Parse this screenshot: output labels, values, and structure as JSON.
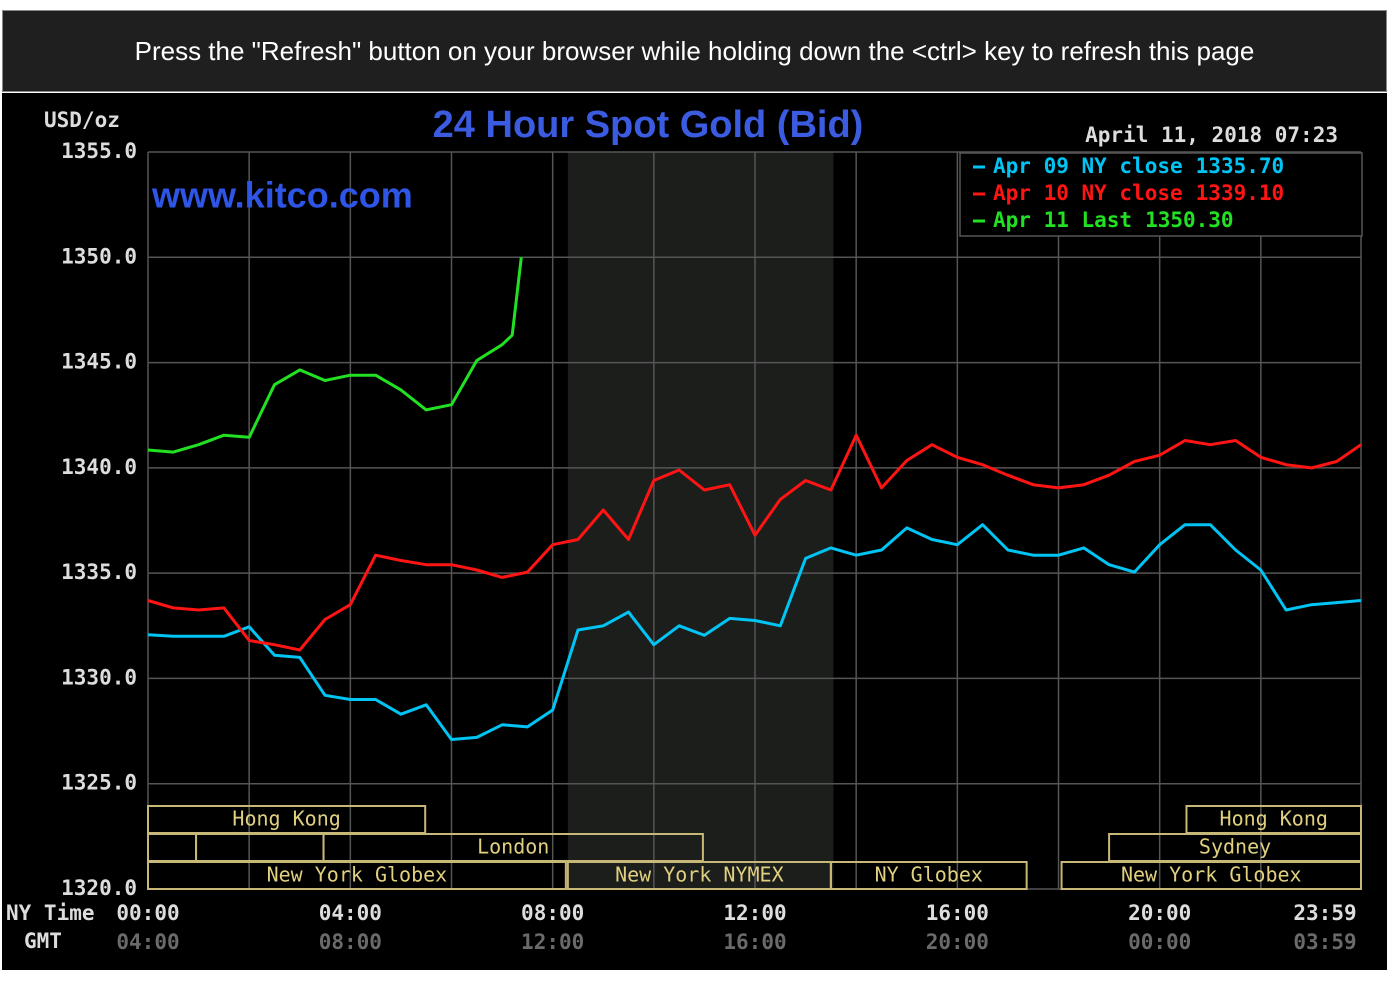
{
  "banner": {
    "text": "Press the \"Refresh\" button on your browser while holding down the <ctrl> key to refresh this page"
  },
  "chart_data": {
    "type": "line",
    "title": "24 Hour Spot Gold (Bid)",
    "y_label": "USD/oz",
    "timestamp": "April 11, 2018 07:23",
    "watermark": "www.kitco.com",
    "x_label": "NY Time",
    "x2_label": "GMT",
    "x": [
      0,
      0.5,
      1,
      1.5,
      2,
      2.5,
      3,
      3.5,
      4,
      4.5,
      5,
      5.5,
      6,
      6.5,
      7,
      7.5,
      8,
      8.5,
      9,
      9.5,
      10,
      10.5,
      11,
      11.5,
      12,
      12.5,
      13,
      13.5,
      14,
      14.5,
      15,
      15.5,
      16,
      16.5,
      17,
      17.5,
      18,
      18.5,
      19,
      19.5,
      20,
      20.5,
      21,
      21.5,
      22,
      22.5,
      23,
      23.5,
      23.98
    ],
    "xlim": [
      0,
      23.98
    ],
    "xticks": [
      {
        "value": 0,
        "label": "00:00"
      },
      {
        "value": 4,
        "label": "04:00"
      },
      {
        "value": 8,
        "label": "08:00"
      },
      {
        "value": 12,
        "label": "12:00"
      },
      {
        "value": 16,
        "label": "16:00"
      },
      {
        "value": 20,
        "label": "20:00"
      },
      {
        "value": 23.98,
        "label": "23:59"
      }
    ],
    "x2ticks": [
      {
        "value": 0,
        "label": "04:00"
      },
      {
        "value": 4,
        "label": "08:00"
      },
      {
        "value": 8,
        "label": "12:00"
      },
      {
        "value": 12,
        "label": "16:00"
      },
      {
        "value": 16,
        "label": "20:00"
      },
      {
        "value": 20,
        "label": "00:00"
      },
      {
        "value": 23.98,
        "label": "03:59"
      }
    ],
    "xgrid": [
      0,
      2,
      4,
      6,
      8,
      10,
      12,
      14,
      16,
      18,
      20,
      22,
      23.98
    ],
    "ylim": [
      1320,
      1355
    ],
    "yticks": [
      {
        "value": 1320,
        "label": "1320.0"
      },
      {
        "value": 1325,
        "label": "1325.0"
      },
      {
        "value": 1330,
        "label": "1330.0"
      },
      {
        "value": 1335,
        "label": "1335.0"
      },
      {
        "value": 1340,
        "label": "1340.0"
      },
      {
        "value": 1345,
        "label": "1345.0"
      },
      {
        "value": 1350,
        "label": "1350.0"
      },
      {
        "value": 1355,
        "label": "1355.0"
      }
    ],
    "grid": true,
    "shaded_span": [
      8.3,
      13.55
    ],
    "series": [
      {
        "name": "Apr 09 NY close",
        "close": 1335.7,
        "close_label": "1335.70",
        "color": "#00c4f4",
        "values": [
          1332.07,
          1332.0,
          1332.0,
          1332.0,
          1332.45,
          1331.1,
          1331.0,
          1329.2,
          1329.0,
          1329.0,
          1328.3,
          1328.75,
          1327.1,
          1327.2,
          1327.8,
          1327.7,
          1328.5,
          1332.3,
          1332.5,
          1333.15,
          1331.6,
          1332.5,
          1332.05,
          1332.85,
          1332.75,
          1332.5,
          1335.7,
          1336.2,
          1335.85,
          1336.1,
          1337.15,
          1336.6,
          1336.35,
          1337.3,
          1336.1,
          1335.85,
          1335.85,
          1336.2,
          1335.4,
          1335.05,
          1336.35,
          1337.3,
          1337.3,
          1336.1,
          1335.15,
          1333.25,
          1333.5,
          1333.6,
          1333.7
        ]
      },
      {
        "name": "Apr 10 NY close",
        "close": 1339.1,
        "close_label": "1339.10",
        "color": "#ff1414",
        "values": [
          1333.7,
          1333.35,
          1333.25,
          1333.35,
          1331.8,
          1331.6,
          1331.35,
          1332.8,
          1333.5,
          1335.85,
          1335.6,
          1335.4,
          1335.4,
          1335.15,
          1334.8,
          1335.05,
          1336.35,
          1336.6,
          1338.0,
          1336.6,
          1339.4,
          1339.9,
          1338.95,
          1339.2,
          1336.8,
          1338.5,
          1339.4,
          1338.95,
          1341.55,
          1339.05,
          1340.35,
          1341.1,
          1340.5,
          1340.15,
          1339.65,
          1339.2,
          1339.05,
          1339.2,
          1339.65,
          1340.3,
          1340.6,
          1341.3,
          1341.1,
          1341.3,
          1340.5,
          1340.15,
          1340.0,
          1340.3,
          1341.1
        ]
      },
      {
        "name": "Apr 11 Last",
        "close": 1350.3,
        "close_label": "1350.30",
        "color": "#22e022",
        "x": [
          0,
          0.5,
          1,
          1.5,
          2,
          2.5,
          3,
          3.5,
          4,
          4.5,
          5,
          5.5,
          6,
          6.5,
          7,
          7.2,
          7.38
        ],
        "values": [
          1340.85,
          1340.75,
          1341.1,
          1341.55,
          1341.45,
          1343.95,
          1344.65,
          1344.15,
          1344.4,
          1344.4,
          1343.7,
          1342.75,
          1343.0,
          1345.1,
          1345.85,
          1346.3,
          1350.0
        ]
      }
    ],
    "session_rows": [
      [
        {
          "label": "Hong Kong",
          "start": 0,
          "end": 5.48
        },
        {
          "label": "Hong Kong",
          "start": 20.53,
          "end": 23.98
        }
      ],
      [
        {
          "label": null,
          "start": 0,
          "end": 0.95
        },
        {
          "label": null,
          "start": 0.95,
          "end": 3.47
        },
        {
          "label": "London",
          "start": 3.47,
          "end": 10.97
        },
        {
          "label": "Sydney",
          "start": 19.0,
          "end": 23.98
        }
      ],
      [
        {
          "label": "New York Globex",
          "start": 0,
          "end": 8.26
        },
        {
          "label": "New York NYMEX",
          "start": 8.3,
          "end": 13.5
        },
        {
          "label": "NY Globex",
          "start": 13.5,
          "end": 17.37
        },
        {
          "label": "New York Globex",
          "start": 18.06,
          "end": 23.98
        }
      ]
    ]
  }
}
